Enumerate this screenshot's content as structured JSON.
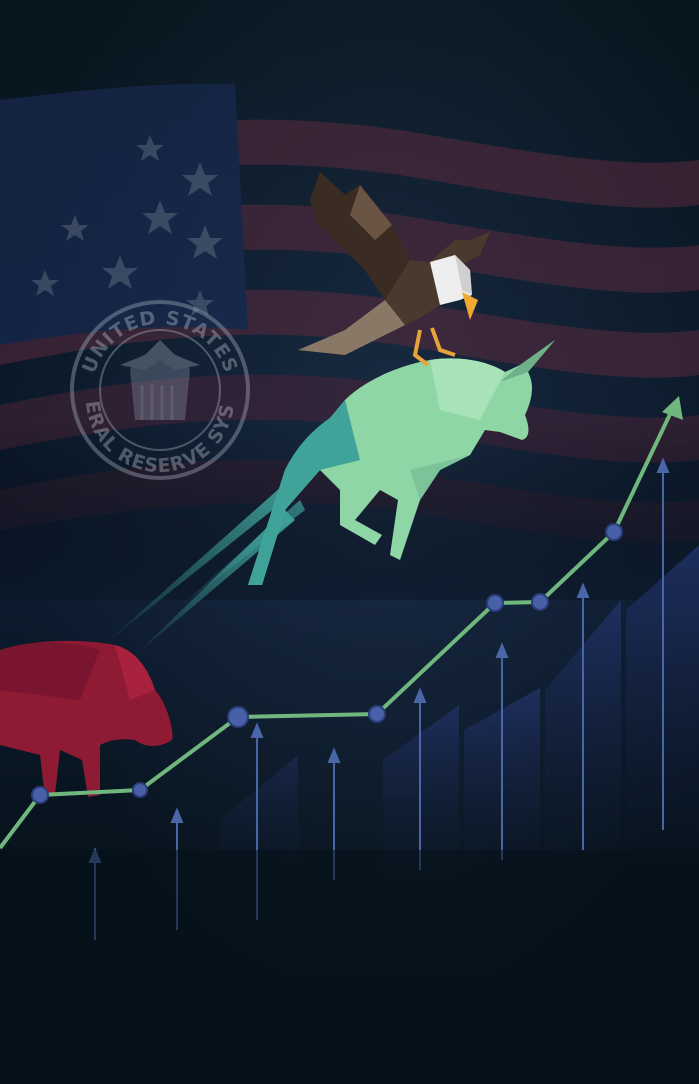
{
  "seal": {
    "top_text": "UNITED STATES",
    "bottom_text": "FEDERAL RESERVE SYSTEM"
  },
  "colors": {
    "background": "#06121a",
    "bull": "#8fd6a6",
    "bear": "#8e1a33",
    "trend_line": "#6fb77d",
    "node": "#4860a8",
    "bars": "#1c2a55",
    "flag_red": "#5a2a3e",
    "flag_blue": "#1c2e5c"
  },
  "icons": [
    "eagle-icon",
    "bull-icon",
    "bear-icon",
    "flag-icon",
    "seal-icon",
    "trend-arrow-icon"
  ]
}
